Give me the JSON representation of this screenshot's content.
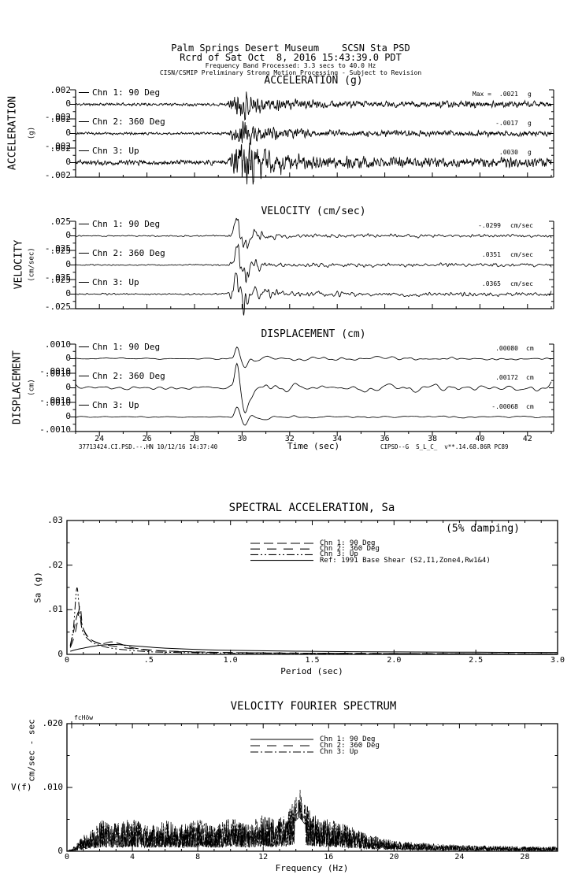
{
  "meta": {
    "ink_color": "#000000",
    "paper_color": "#ffffff"
  },
  "header": {
    "station_line": "Palm Springs Desert Museum    SCSN Sta PSD",
    "record_line": "Rcrd of Sat Oct  8, 2016 15:43:39.0 PDT",
    "band_line": "Frequency Band Processed: 3.3 secs to 40.0 Hz",
    "notice_line": "CISN/CSMIP Preliminary Strong Motion Processing - Subject to Revision"
  },
  "footer": {
    "left": "37713424.CI.PSD.--.HN 10/12/16 14:37:40",
    "center": "Time (sec)",
    "right": "CIPSD--G  S_L_C_  v**.14.68.86R PC89"
  },
  "chart_data": [
    {
      "id": "acceleration",
      "type": "line",
      "title": "ACCELERATION (g)",
      "side_label": "ACCELERATION",
      "side_units": "(g)",
      "y_full_scale": 0.002,
      "ytick_labels": {
        "top": ".002",
        "mid": "0",
        "bot": "-.002"
      },
      "x_range": [
        23,
        43
      ],
      "channels": [
        {
          "label": "Chn 1: 90 Deg",
          "max_prefix": "Max =",
          "max_text": ".0021",
          "units": "g",
          "peak": 0.0021,
          "seed": 11
        },
        {
          "label": "Chn 2: 360 Deg",
          "max_text": "-.0017",
          "units": "g",
          "peak": 0.0017,
          "seed": 23
        },
        {
          "label": "Chn 3: Up",
          "max_text": ".0030",
          "units": "g",
          "peak": 0.003,
          "seed": 37
        }
      ],
      "signal": {
        "pre": 0.09,
        "floor": 0.22,
        "k": 0.9,
        "smooth": 1
      }
    },
    {
      "id": "velocity",
      "type": "line",
      "title": "VELOCITY (cm/sec)",
      "side_label": "VELOCITY",
      "side_units": "(cm/sec)",
      "y_full_scale": 0.025,
      "ytick_labels": {
        "top": ".025",
        "mid": "0",
        "bot": "-.025"
      },
      "x_range": [
        23,
        43
      ],
      "channels": [
        {
          "label": "Chn 1: 90 Deg",
          "max_text": "-.0299",
          "units": "cm/sec",
          "peak": 0.0299,
          "seed": 51
        },
        {
          "label": "Chn 2: 360 Deg",
          "max_text": ".0351",
          "units": "cm/sec",
          "peak": 0.0351,
          "seed": 67
        },
        {
          "label": "Chn 3: Up",
          "max_text": ".0365",
          "units": "cm/sec",
          "peak": 0.0365,
          "seed": 83
        }
      ],
      "signal": {
        "pre": 0.06,
        "floor": 0.16,
        "k": 1.1,
        "smooth": 3
      }
    },
    {
      "id": "displacement",
      "type": "line",
      "title": "DISPLACEMENT (cm)",
      "side_label": "DISPLACEMENT",
      "side_units": "(cm)",
      "y_full_scale": 0.001,
      "ytick_labels": {
        "top": ".0010",
        "mid": "0",
        "bot": "-.0010"
      },
      "x_range": [
        23,
        43
      ],
      "xtick_labels": [
        "24",
        "26",
        "28",
        "30",
        "32",
        "34",
        "36",
        "38",
        "40",
        "42"
      ],
      "channels": [
        {
          "label": "Chn 1: 90 Deg",
          "max_text": ".00080",
          "units": "cm",
          "peak": 0.0008,
          "seed": 91
        },
        {
          "label": "Chn 2: 360 Deg",
          "max_text": ".00172",
          "units": "cm",
          "peak": 0.00172,
          "seed": 104
        },
        {
          "label": "Chn 3: Up",
          "max_text": "-.00068",
          "units": "cm",
          "peak": 0.00068,
          "seed": 117
        }
      ],
      "signal": {
        "pre": 0.14,
        "floor": 0.3,
        "k": 0.9,
        "smooth": 8
      }
    },
    {
      "id": "sa",
      "type": "line",
      "title": "SPECTRAL ACCELERATION, Sa",
      "annotation": "(5% damping)",
      "xlabel": "Period (sec)",
      "ylabel": "Sa (g)",
      "xlim": [
        0,
        3
      ],
      "ylim": [
        0,
        0.03
      ],
      "xtick_labels": [
        [
          "0",
          0
        ],
        [
          ".5",
          0.5
        ],
        [
          "1.0",
          1.0
        ],
        [
          "1.5",
          1.5
        ],
        [
          "2.0",
          2.0
        ],
        [
          "2.5",
          2.5
        ],
        [
          "3.0",
          3.0
        ]
      ],
      "ytick_labels": [
        [
          ".03",
          0.03
        ],
        [
          ".02",
          0.02
        ],
        [
          ".01",
          0.01
        ],
        [
          "0",
          0
        ]
      ],
      "legend": [
        {
          "label": "Chn 1: 90 Deg",
          "style": "dash"
        },
        {
          "label": "Chn 2: 360 Deg",
          "style": "longdash"
        },
        {
          "label": "Chn 3: Up",
          "style": "dashdot"
        },
        {
          "label": "Ref: 1991 Base Shear (S2,I1,Zone4,Rw1&4)",
          "style": "solid"
        }
      ],
      "series": [
        {
          "name": "Chn 1: 90 Deg",
          "style": "dash",
          "points": [
            [
              0.02,
              0.0018
            ],
            [
              0.04,
              0.005
            ],
            [
              0.06,
              0.0085
            ],
            [
              0.075,
              0.0095
            ],
            [
              0.09,
              0.007
            ],
            [
              0.11,
              0.005
            ],
            [
              0.14,
              0.0035
            ],
            [
              0.18,
              0.0027
            ],
            [
              0.22,
              0.0024
            ],
            [
              0.27,
              0.0028
            ],
            [
              0.32,
              0.0024
            ],
            [
              0.4,
              0.0015
            ],
            [
              0.5,
              0.001
            ],
            [
              0.65,
              0.0007
            ],
            [
              0.85,
              0.0005
            ],
            [
              1.1,
              0.00035
            ],
            [
              1.5,
              0.00025
            ],
            [
              2.0,
              0.00018
            ],
            [
              2.5,
              0.00012
            ],
            [
              3.0,
              0.0001
            ]
          ]
        },
        {
          "name": "Chn 2: 360 Deg",
          "style": "longdash",
          "points": [
            [
              0.02,
              0.0015
            ],
            [
              0.045,
              0.004
            ],
            [
              0.065,
              0.0075
            ],
            [
              0.08,
              0.011
            ],
            [
              0.095,
              0.0065
            ],
            [
              0.12,
              0.0042
            ],
            [
              0.16,
              0.003
            ],
            [
              0.2,
              0.0024
            ],
            [
              0.26,
              0.002
            ],
            [
              0.33,
              0.0016
            ],
            [
              0.42,
              0.0012
            ],
            [
              0.55,
              0.0008
            ],
            [
              0.75,
              0.00055
            ],
            [
              1.0,
              0.0004
            ],
            [
              1.4,
              0.00028
            ],
            [
              2.0,
              0.0002
            ],
            [
              2.6,
              0.00013
            ],
            [
              3.0,
              0.0001
            ]
          ]
        },
        {
          "name": "Chn 3: Up",
          "style": "dashdot",
          "points": [
            [
              0.02,
              0.002
            ],
            [
              0.04,
              0.006
            ],
            [
              0.06,
              0.0148
            ],
            [
              0.075,
              0.0105
            ],
            [
              0.09,
              0.006
            ],
            [
              0.11,
              0.0042
            ],
            [
              0.15,
              0.0028
            ],
            [
              0.2,
              0.002
            ],
            [
              0.27,
              0.0014
            ],
            [
              0.36,
              0.001
            ],
            [
              0.5,
              0.0006
            ],
            [
              0.7,
              0.0004
            ],
            [
              1.0,
              0.00028
            ],
            [
              1.5,
              0.0002
            ],
            [
              2.2,
              0.00013
            ],
            [
              3.0,
              0.0001
            ]
          ]
        },
        {
          "name": "Ref: 1991 Base Shear (S2,I1,Zone4,Rw1&4)",
          "style": "solid",
          "points": [
            [
              0.02,
              0.0007
            ],
            [
              0.06,
              0.0011
            ],
            [
              0.1,
              0.0014
            ],
            [
              0.16,
              0.0018
            ],
            [
              0.22,
              0.0021
            ],
            [
              0.3,
              0.0022
            ],
            [
              0.38,
              0.002
            ],
            [
              0.48,
              0.0017
            ],
            [
              0.6,
              0.0014
            ],
            [
              0.8,
              0.0011
            ],
            [
              1.0,
              0.0009
            ],
            [
              1.4,
              0.0007
            ],
            [
              2.0,
              0.00055
            ],
            [
              2.5,
              0.00047
            ],
            [
              3.0,
              0.00042
            ]
          ]
        }
      ]
    },
    {
      "id": "fourier",
      "type": "line",
      "title": "VELOCITY FOURIER SPECTRUM",
      "corner_label": "fcHöw",
      "xlabel": "Frequency (Hz)",
      "ylabel": "V(f)",
      "ylabel_units": "cm/sec - sec",
      "xlim": [
        0,
        30
      ],
      "ylim": [
        0,
        0.02
      ],
      "xtick_labels": [
        [
          "0",
          0
        ],
        [
          "4",
          4
        ],
        [
          "8",
          8
        ],
        [
          "12",
          12
        ],
        [
          "16",
          16
        ],
        [
          "20",
          20
        ],
        [
          "24",
          24
        ],
        [
          "28",
          28
        ]
      ],
      "ytick_labels": [
        [
          ".020",
          0.02
        ],
        [
          ".010",
          0.01
        ],
        [
          "0",
          0
        ]
      ],
      "legend": [
        {
          "label": "Chn 1: 90 Deg",
          "style": "solid"
        },
        {
          "label": "Chn 2: 360 Deg",
          "style": "longdash"
        },
        {
          "label": "Chn 3: Up",
          "style": "dashdot"
        }
      ],
      "envelope": [
        [
          0,
          0
        ],
        [
          0.3,
          0.0004
        ],
        [
          0.6,
          0.0012
        ],
        [
          1,
          0.0025
        ],
        [
          1.6,
          0.0035
        ],
        [
          2.2,
          0.005
        ],
        [
          3,
          0.0044
        ],
        [
          4,
          0.0052
        ],
        [
          5,
          0.004
        ],
        [
          6,
          0.005
        ],
        [
          7,
          0.0042
        ],
        [
          8,
          0.0052
        ],
        [
          9,
          0.004
        ],
        [
          10,
          0.0055
        ],
        [
          11,
          0.0044
        ],
        [
          12,
          0.0058
        ],
        [
          12.8,
          0.0048
        ],
        [
          13.5,
          0.0062
        ],
        [
          14.2,
          0.0098
        ],
        [
          14.5,
          0.008
        ],
        [
          15,
          0.006
        ],
        [
          15.6,
          0.0052
        ],
        [
          16.3,
          0.0048
        ],
        [
          17,
          0.0042
        ],
        [
          17.8,
          0.0034
        ],
        [
          18.5,
          0.0026
        ],
        [
          19.2,
          0.0021
        ],
        [
          20,
          0.0017
        ],
        [
          21,
          0.0014
        ],
        [
          22,
          0.0013
        ],
        [
          23,
          0.0011
        ],
        [
          24,
          0.001
        ],
        [
          25,
          0.0009
        ],
        [
          26,
          0.00085
        ],
        [
          27,
          0.0008
        ],
        [
          28,
          0.00075
        ],
        [
          29,
          0.0007
        ],
        [
          30,
          0.00075
        ]
      ],
      "peak": {
        "freq": 14.3,
        "value": 0.0115
      },
      "channels": [
        {
          "seed": 131,
          "style": "solid"
        },
        {
          "seed": 149,
          "style": "longdash",
          "peak_boost": 1.18
        },
        {
          "seed": 167,
          "style": "dashdot"
        }
      ]
    }
  ]
}
